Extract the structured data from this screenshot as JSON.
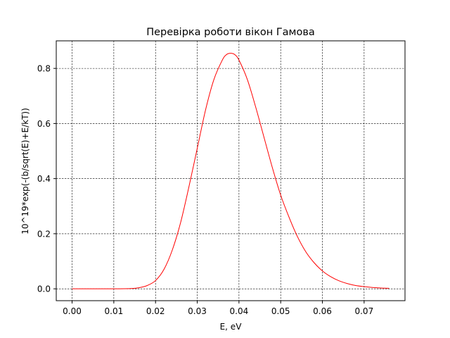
{
  "chart_data": {
    "type": "line",
    "title": "Перевірка роботи вікон Гамова",
    "xlabel": "E, eV",
    "ylabel": "10^19*exp(-(b/sqrt(E)+E/kT))",
    "xlim": [
      -0.0038,
      0.0798
    ],
    "ylim": [
      -0.043,
      0.9
    ],
    "xticks": [
      0.0,
      0.01,
      0.02,
      0.03,
      0.04,
      0.05,
      0.06,
      0.07
    ],
    "xtick_labels": [
      "0.00",
      "0.01",
      "0.02",
      "0.03",
      "0.04",
      "0.05",
      "0.06",
      "0.07"
    ],
    "yticks": [
      0.0,
      0.2,
      0.4,
      0.6,
      0.8
    ],
    "ytick_labels": [
      "0.0",
      "0.2",
      "0.4",
      "0.6",
      "0.8"
    ],
    "grid": true,
    "grid_style": "dashed",
    "series": [
      {
        "color": "#ff0000",
        "x": [
          0.0,
          0.005,
          0.01,
          0.014,
          0.016,
          0.018,
          0.02,
          0.022,
          0.024,
          0.026,
          0.028,
          0.03,
          0.032,
          0.034,
          0.036,
          0.037,
          0.038,
          0.039,
          0.04,
          0.042,
          0.044,
          0.046,
          0.048,
          0.05,
          0.052,
          0.054,
          0.056,
          0.058,
          0.06,
          0.062,
          0.064,
          0.066,
          0.068,
          0.07,
          0.072,
          0.074,
          0.076
        ],
        "y": [
          0.0,
          0.0,
          0.0,
          0.001,
          0.004,
          0.012,
          0.03,
          0.07,
          0.14,
          0.24,
          0.37,
          0.51,
          0.65,
          0.76,
          0.83,
          0.85,
          0.855,
          0.85,
          0.83,
          0.76,
          0.66,
          0.55,
          0.44,
          0.34,
          0.26,
          0.19,
          0.135,
          0.095,
          0.065,
          0.044,
          0.029,
          0.019,
          0.012,
          0.008,
          0.005,
          0.003,
          0.002
        ]
      }
    ]
  }
}
